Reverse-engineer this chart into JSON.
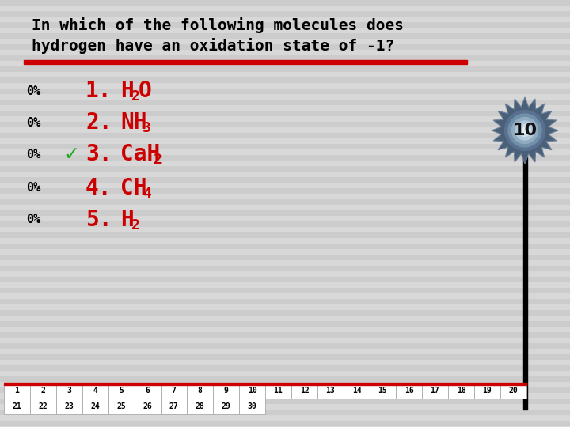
{
  "title_line1": "In which of the following molecules does",
  "title_line2": "hydrogen have an oxidation state of -1?",
  "bg_color": "#d0d0d0",
  "title_color": "#000000",
  "red_line_color": "#cc0000",
  "options": [
    {
      "num": "1.",
      "formula_parts": [
        {
          "text": "H",
          "sub": false
        },
        {
          "text": "2",
          "sub": true
        },
        {
          "text": "O",
          "sub": false
        }
      ],
      "correct": false
    },
    {
      "num": "2.",
      "formula_parts": [
        {
          "text": "NH",
          "sub": false
        },
        {
          "text": "3",
          "sub": true
        }
      ],
      "correct": false
    },
    {
      "num": "3.",
      "formula_parts": [
        {
          "text": "CaH",
          "sub": false
        },
        {
          "text": "2",
          "sub": true
        }
      ],
      "correct": true
    },
    {
      "num": "4.",
      "formula_parts": [
        {
          "text": "CH",
          "sub": false
        },
        {
          "text": "4",
          "sub": true
        }
      ],
      "correct": false
    },
    {
      "num": "5.",
      "formula_parts": [
        {
          "text": "H",
          "sub": false
        },
        {
          "text": "2",
          "sub": true
        }
      ],
      "correct": false
    }
  ],
  "pct_label": "0%",
  "num_color": "#cc0000",
  "check_color": "#22aa22",
  "pct_color": "#000000",
  "timer_value": "10",
  "timer_stem_color": "#000000",
  "grid_rows": [
    [
      1,
      2,
      3,
      4,
      5,
      6,
      7,
      8,
      9,
      10,
      11,
      12,
      13,
      14,
      15,
      16,
      17,
      18,
      19,
      20
    ],
    [
      21,
      22,
      23,
      24,
      25,
      26,
      27,
      28,
      29,
      30
    ]
  ],
  "grid_border_color": "#cc0000",
  "grid_bg": "#ffffff",
  "stripe_light": "#cccccc",
  "stripe_dark": "#d8d8d8"
}
